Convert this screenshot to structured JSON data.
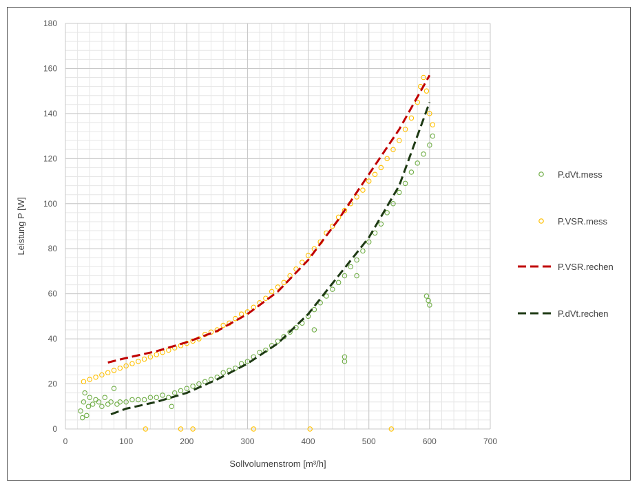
{
  "chart_data": {
    "type": "scatter",
    "xlabel": "Sollvolumenstrom  [m³/h]",
    "ylabel": "Leistung P [W]",
    "xlim": [
      0,
      700
    ],
    "ylim": [
      0,
      180
    ],
    "x_ticks": [
      0,
      100,
      200,
      300,
      400,
      500,
      600,
      700
    ],
    "y_ticks": [
      0,
      20,
      40,
      60,
      80,
      100,
      120,
      140,
      160,
      180
    ],
    "grid": true,
    "minor_grid": true,
    "legend_position": "right",
    "series": [
      {
        "name": "P.dVt.mess",
        "kind": "scatter",
        "marker": "open-circle",
        "color": "#70ad47",
        "points": [
          [
            25,
            8
          ],
          [
            28,
            5
          ],
          [
            30,
            12
          ],
          [
            32,
            16
          ],
          [
            35,
            6
          ],
          [
            38,
            10
          ],
          [
            40,
            14
          ],
          [
            45,
            11
          ],
          [
            50,
            13
          ],
          [
            55,
            12
          ],
          [
            60,
            10
          ],
          [
            65,
            14
          ],
          [
            70,
            11
          ],
          [
            75,
            12
          ],
          [
            80,
            18
          ],
          [
            85,
            11
          ],
          [
            90,
            12
          ],
          [
            100,
            12
          ],
          [
            110,
            13
          ],
          [
            120,
            13
          ],
          [
            130,
            13
          ],
          [
            140,
            14
          ],
          [
            150,
            14
          ],
          [
            160,
            15
          ],
          [
            170,
            14
          ],
          [
            175,
            10
          ],
          [
            180,
            16
          ],
          [
            190,
            17
          ],
          [
            200,
            18
          ],
          [
            210,
            19
          ],
          [
            220,
            20
          ],
          [
            230,
            21
          ],
          [
            240,
            22
          ],
          [
            250,
            23
          ],
          [
            260,
            25
          ],
          [
            270,
            26
          ],
          [
            280,
            27
          ],
          [
            290,
            29
          ],
          [
            300,
            30
          ],
          [
            310,
            32
          ],
          [
            320,
            34
          ],
          [
            330,
            35
          ],
          [
            340,
            37
          ],
          [
            350,
            39
          ],
          [
            360,
            41
          ],
          [
            370,
            43
          ],
          [
            380,
            45
          ],
          [
            390,
            47
          ],
          [
            400,
            50
          ],
          [
            410,
            53
          ],
          [
            420,
            56
          ],
          [
            430,
            59
          ],
          [
            440,
            62
          ],
          [
            450,
            65
          ],
          [
            460,
            68
          ],
          [
            470,
            72
          ],
          [
            480,
            75
          ],
          [
            490,
            79
          ],
          [
            500,
            83
          ],
          [
            510,
            87
          ],
          [
            520,
            91
          ],
          [
            530,
            96
          ],
          [
            540,
            100
          ],
          [
            550,
            105
          ],
          [
            560,
            109
          ],
          [
            570,
            114
          ],
          [
            580,
            118
          ],
          [
            590,
            122
          ],
          [
            600,
            126
          ],
          [
            605,
            130
          ],
          [
            410,
            44
          ],
          [
            460,
            30
          ],
          [
            460,
            32
          ],
          [
            480,
            68
          ],
          [
            598,
            57
          ],
          [
            600,
            55
          ],
          [
            595,
            59
          ]
        ]
      },
      {
        "name": "P.VSR.mess",
        "kind": "scatter",
        "marker": "open-circle",
        "color": "#ffc000",
        "points": [
          [
            30,
            21
          ],
          [
            40,
            22
          ],
          [
            50,
            23
          ],
          [
            60,
            24
          ],
          [
            70,
            25
          ],
          [
            80,
            26
          ],
          [
            90,
            27
          ],
          [
            100,
            28
          ],
          [
            110,
            29
          ],
          [
            120,
            30
          ],
          [
            130,
            31
          ],
          [
            140,
            32
          ],
          [
            150,
            33
          ],
          [
            160,
            34
          ],
          [
            170,
            35
          ],
          [
            180,
            36
          ],
          [
            190,
            37
          ],
          [
            200,
            38
          ],
          [
            210,
            39
          ],
          [
            220,
            40
          ],
          [
            230,
            42
          ],
          [
            240,
            43
          ],
          [
            250,
            44
          ],
          [
            260,
            46
          ],
          [
            270,
            47
          ],
          [
            280,
            49
          ],
          [
            290,
            51
          ],
          [
            300,
            52
          ],
          [
            310,
            54
          ],
          [
            320,
            56
          ],
          [
            330,
            58
          ],
          [
            340,
            61
          ],
          [
            350,
            63
          ],
          [
            360,
            65
          ],
          [
            370,
            68
          ],
          [
            380,
            71
          ],
          [
            390,
            74
          ],
          [
            400,
            77
          ],
          [
            410,
            80
          ],
          [
            420,
            83
          ],
          [
            430,
            87
          ],
          [
            440,
            90
          ],
          [
            450,
            94
          ],
          [
            460,
            97
          ],
          [
            470,
            100
          ],
          [
            480,
            103
          ],
          [
            490,
            106
          ],
          [
            500,
            110
          ],
          [
            510,
            113
          ],
          [
            520,
            116
          ],
          [
            530,
            120
          ],
          [
            540,
            124
          ],
          [
            550,
            128
          ],
          [
            560,
            133
          ],
          [
            570,
            138
          ],
          [
            580,
            145
          ],
          [
            585,
            152
          ],
          [
            590,
            156
          ],
          [
            595,
            150
          ],
          [
            600,
            140
          ],
          [
            605,
            135
          ],
          [
            132,
            0
          ],
          [
            190,
            0
          ],
          [
            210,
            0
          ],
          [
            310,
            0
          ],
          [
            403,
            0
          ],
          [
            537,
            0
          ]
        ]
      },
      {
        "name": "P.VSR.rechen",
        "kind": "line",
        "style": "dashed",
        "color": "#c00000",
        "points": [
          [
            70,
            29.5
          ],
          [
            100,
            31.5
          ],
          [
            150,
            34.5
          ],
          [
            200,
            38.5
          ],
          [
            250,
            43.5
          ],
          [
            300,
            51
          ],
          [
            350,
            61
          ],
          [
            400,
            75
          ],
          [
            450,
            93
          ],
          [
            500,
            113
          ],
          [
            550,
            133
          ],
          [
            600,
            157
          ]
        ]
      },
      {
        "name": "P.dVt.rechen",
        "kind": "line",
        "style": "dashed",
        "color": "#1e3a14",
        "points": [
          [
            75,
            6.5
          ],
          [
            100,
            9
          ],
          [
            150,
            12
          ],
          [
            200,
            16
          ],
          [
            250,
            22
          ],
          [
            300,
            29
          ],
          [
            350,
            38
          ],
          [
            400,
            51
          ],
          [
            450,
            68
          ],
          [
            500,
            85
          ],
          [
            550,
            108
          ],
          [
            600,
            145
          ]
        ]
      }
    ]
  }
}
